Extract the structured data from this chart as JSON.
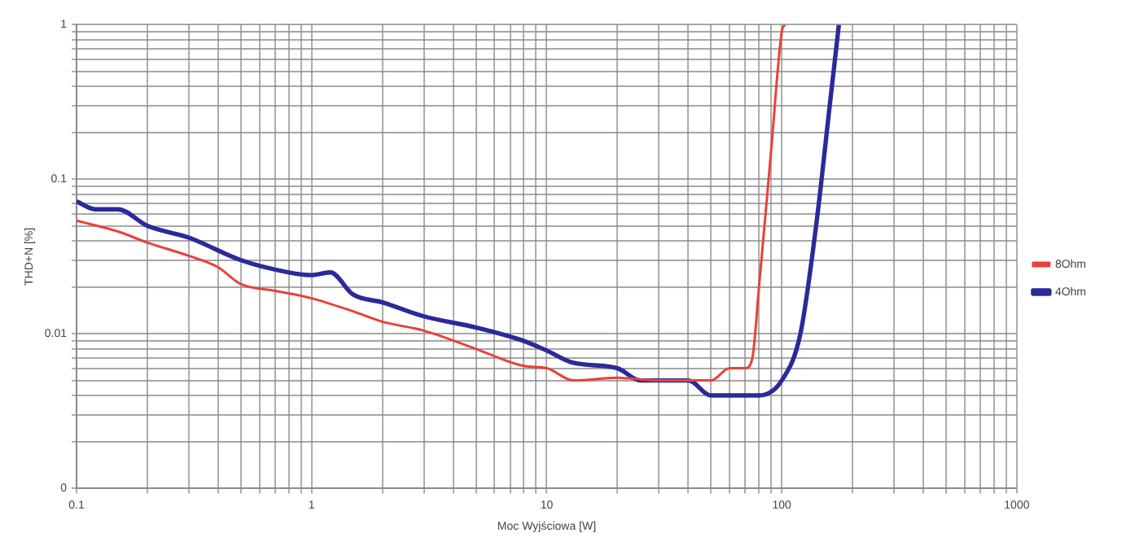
{
  "chart_data": {
    "type": "line",
    "xlabel": "Moc Wyjściowa [W]",
    "ylabel": "THD+N [%]",
    "log": "xy",
    "grid": true,
    "legend": "right",
    "marker": "none",
    "line_style": "solid",
    "xlim": [
      0.1,
      1000
    ],
    "ylim": [
      0.001,
      1
    ],
    "xticks": [
      0.1,
      {
        "value": 0.2,
        "label": null
      },
      {
        "value": 0.3,
        "label": null
      },
      {
        "value": 0.4,
        "label": null
      },
      {
        "value": 0.5,
        "label": null
      },
      {
        "value": 0.6,
        "label": null
      },
      {
        "value": 0.7,
        "label": null
      },
      {
        "value": 0.8,
        "label": null
      },
      {
        "value": 0.9,
        "label": null
      },
      1,
      {
        "value": 2,
        "label": null
      },
      {
        "value": 3,
        "label": null
      },
      {
        "value": 4,
        "label": null
      },
      {
        "value": 5,
        "label": null
      },
      {
        "value": 6,
        "label": null
      },
      {
        "value": 7,
        "label": null
      },
      {
        "value": 8,
        "label": null
      },
      {
        "value": 9,
        "label": null
      },
      10,
      {
        "value": 20,
        "label": null
      },
      {
        "value": 30,
        "label": null
      },
      {
        "value": 40,
        "label": null
      },
      {
        "value": 50,
        "label": null
      },
      {
        "value": 60,
        "label": null
      },
      {
        "value": 70,
        "label": null
      },
      {
        "value": 80,
        "label": null
      },
      {
        "value": 90,
        "label": null
      },
      100,
      {
        "value": 200,
        "label": null
      },
      {
        "value": 300,
        "label": null
      },
      {
        "value": 400,
        "label": null
      },
      {
        "value": 500,
        "label": null
      },
      {
        "value": 600,
        "label": null
      },
      {
        "value": 700,
        "label": null
      },
      {
        "value": 800,
        "label": null
      },
      {
        "value": 900,
        "label": null
      },
      1000
    ],
    "yticks": [
      {
        "value": 0.001,
        "label": "0"
      },
      {
        "value": 0.002,
        "label": null
      },
      {
        "value": 0.003,
        "label": null
      },
      {
        "value": 0.004,
        "label": null
      },
      {
        "value": 0.005,
        "label": null
      },
      {
        "value": 0.006,
        "label": null
      },
      {
        "value": 0.007,
        "label": null
      },
      {
        "value": 0.008,
        "label": null
      },
      {
        "value": 0.009,
        "label": null
      },
      0.01,
      {
        "value": 0.02,
        "label": null
      },
      {
        "value": 0.03,
        "label": null
      },
      {
        "value": 0.04,
        "label": null
      },
      {
        "value": 0.05,
        "label": null
      },
      {
        "value": 0.06,
        "label": null
      },
      {
        "value": 0.07,
        "label": null
      },
      {
        "value": 0.08,
        "label": null
      },
      {
        "value": 0.09,
        "label": null
      },
      0.1,
      {
        "value": 0.2,
        "label": null
      },
      {
        "value": 0.3,
        "label": null
      },
      {
        "value": 0.4,
        "label": null
      },
      {
        "value": 0.5,
        "label": null
      },
      {
        "value": 0.6,
        "label": null
      },
      {
        "value": 0.7,
        "label": null
      },
      {
        "value": 0.8,
        "label": null
      },
      {
        "value": 0.9,
        "label": null
      },
      1
    ],
    "series": [
      {
        "name": "8Ohm",
        "color": "#e8413c",
        "x": [
          0.1,
          0.15,
          0.2,
          0.3,
          0.4,
          0.5,
          0.7,
          1,
          1.5,
          2,
          3,
          5,
          8,
          10,
          13,
          20,
          30,
          40,
          50,
          60,
          70,
          75,
          80,
          90,
          100,
          103
        ],
        "values": [
          0.054,
          0.046,
          0.039,
          0.032,
          0.027,
          0.021,
          0.019,
          0.017,
          0.014,
          0.012,
          0.0105,
          0.008,
          0.0062,
          0.006,
          0.005,
          0.0052,
          0.005,
          0.005,
          0.005,
          0.006,
          0.006,
          0.007,
          0.02,
          0.15,
          0.9,
          1
        ]
      },
      {
        "name": "4Ohm",
        "color": "#2a2a9a",
        "x": [
          0.1,
          0.12,
          0.15,
          0.2,
          0.3,
          0.5,
          0.8,
          1,
          1.2,
          1.5,
          2,
          3,
          5,
          8,
          10,
          13,
          20,
          25,
          30,
          40,
          50,
          60,
          80,
          100,
          120,
          140,
          160,
          175
        ],
        "values": [
          0.072,
          0.064,
          0.064,
          0.05,
          0.042,
          0.03,
          0.025,
          0.024,
          0.025,
          0.018,
          0.016,
          0.013,
          0.011,
          0.009,
          0.0078,
          0.0065,
          0.006,
          0.005,
          0.005,
          0.005,
          0.004,
          0.004,
          0.004,
          0.005,
          0.01,
          0.05,
          0.3,
          1
        ]
      }
    ]
  }
}
